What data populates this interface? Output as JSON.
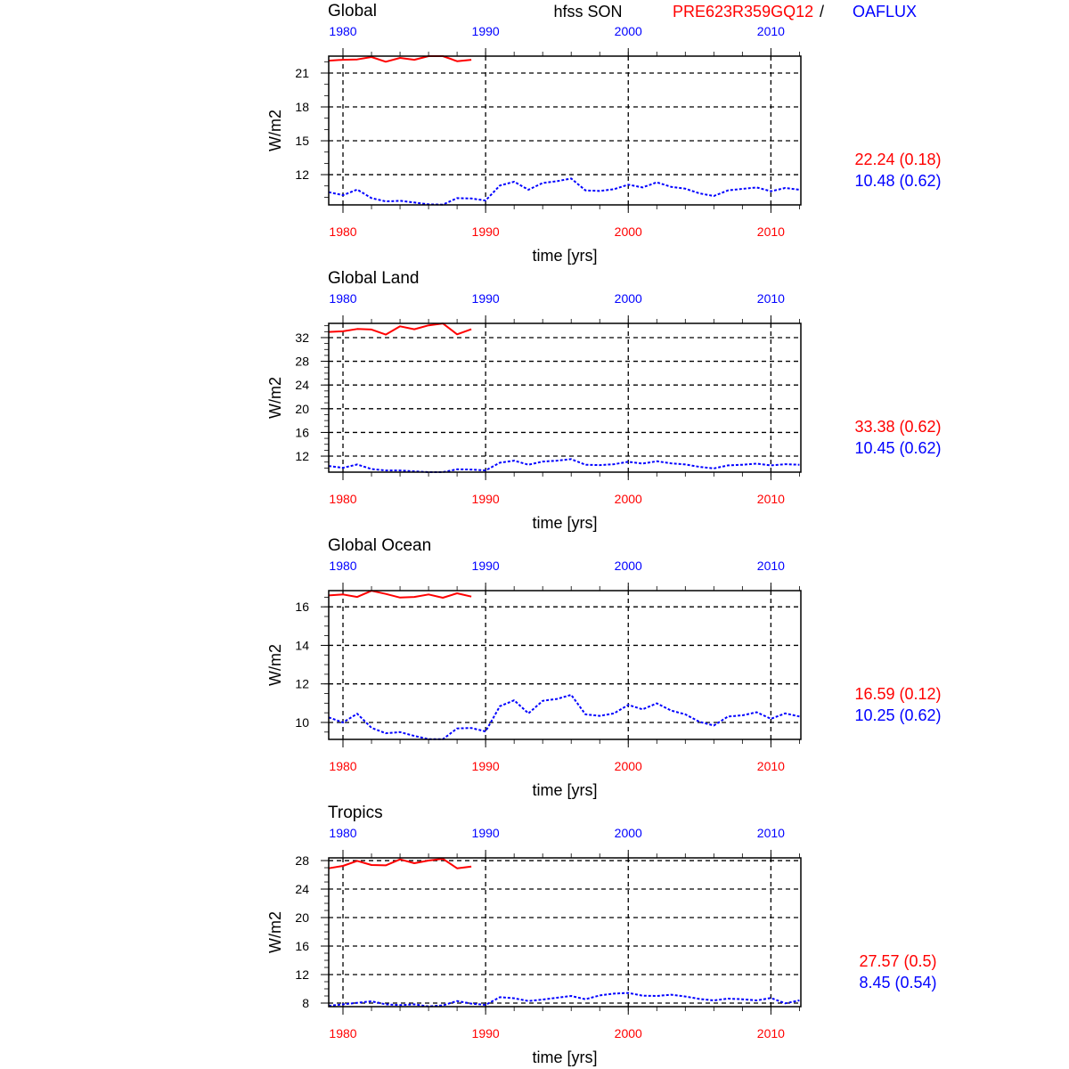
{
  "header": {
    "variable": "hfss SON",
    "model_name": "PRE623R359GQ12",
    "separator": "/",
    "obs_name": "OAFLUX"
  },
  "colors": {
    "model": "#ff0000",
    "obs": "#0000ff",
    "axis": "#000000"
  },
  "chart_data": [
    {
      "type": "line",
      "title": "Global",
      "xlabel": "time [yrs]",
      "ylabel": "W/m2",
      "xlim": [
        1979,
        2012.1
      ],
      "ylim": [
        9.32,
        22.5
      ],
      "xticks": [
        1980,
        1990,
        2000,
        2010
      ],
      "yticks": [
        12,
        15,
        18,
        21
      ],
      "yminor_step": 1,
      "grid": true,
      "stats": {
        "model": "22.24 (0.18)",
        "obs": "10.48 (0.62)"
      },
      "series": [
        {
          "name": "PRE623R359GQ12",
          "style": "solid",
          "x_start": 1979,
          "values": [
            22.1,
            22.18,
            22.21,
            22.42,
            22.0,
            22.34,
            22.18,
            22.5,
            22.5,
            22.05,
            22.18
          ]
        },
        {
          "name": "OAFLUX",
          "style": "dashed",
          "x_start": 1979,
          "values": [
            10.45,
            10.18,
            10.68,
            9.92,
            9.63,
            9.68,
            9.53,
            9.37,
            9.34,
            9.92,
            9.89,
            9.71,
            11.03,
            11.37,
            10.66,
            11.26,
            11.42,
            11.66,
            10.61,
            10.55,
            10.71,
            11.11,
            10.87,
            11.32,
            10.92,
            10.76,
            10.34,
            10.11,
            10.61,
            10.74,
            10.87,
            10.53,
            10.82,
            10.66
          ]
        }
      ]
    },
    {
      "type": "line",
      "title": "Global Land",
      "xlabel": "time [yrs]",
      "ylabel": "W/m2",
      "xlim": [
        1979,
        2012.1
      ],
      "ylim": [
        9.3,
        34.4
      ],
      "xticks": [
        1980,
        1990,
        2000,
        2010
      ],
      "yticks": [
        12,
        16,
        20,
        24,
        28,
        32
      ],
      "yminor_step": 1,
      "grid": true,
      "stats": {
        "model": "33.38 (0.62)",
        "obs": "10.45 (0.62)"
      },
      "series": [
        {
          "name": "PRE623R359GQ12",
          "style": "solid",
          "x_start": 1979,
          "values": [
            32.96,
            33.06,
            33.46,
            33.36,
            32.5,
            33.91,
            33.41,
            34.07,
            34.38,
            32.55,
            33.41
          ]
        },
        {
          "name": "OAFLUX",
          "style": "dashed",
          "x_start": 1979,
          "values": [
            10.34,
            10.04,
            10.59,
            9.83,
            9.58,
            9.58,
            9.43,
            9.3,
            9.3,
            9.78,
            9.73,
            9.58,
            10.89,
            11.24,
            10.54,
            11.09,
            11.24,
            11.5,
            10.54,
            10.49,
            10.64,
            11.04,
            10.74,
            11.14,
            10.79,
            10.59,
            10.19,
            9.93,
            10.44,
            10.54,
            10.74,
            10.44,
            10.64,
            10.54
          ]
        }
      ]
    },
    {
      "type": "line",
      "title": "Global Ocean",
      "xlabel": "time [yrs]",
      "ylabel": "W/m2",
      "xlim": [
        1979,
        2012.1
      ],
      "ylim": [
        9.12,
        16.84
      ],
      "xticks": [
        1980,
        1990,
        2000,
        2010
      ],
      "yticks": [
        10,
        12,
        14,
        16
      ],
      "yminor_step": 0.5,
      "grid": true,
      "stats": {
        "model": "16.59 (0.12)",
        "obs": "10.25 (0.62)"
      },
      "series": [
        {
          "name": "PRE623R359GQ12",
          "style": "solid",
          "x_start": 1979,
          "values": [
            16.59,
            16.64,
            16.51,
            16.83,
            16.67,
            16.48,
            16.51,
            16.64,
            16.47,
            16.7,
            16.53
          ]
        },
        {
          "name": "OAFLUX",
          "style": "dashed",
          "x_start": 1979,
          "values": [
            10.26,
            10.0,
            10.45,
            9.72,
            9.44,
            9.5,
            9.3,
            9.13,
            9.13,
            9.69,
            9.71,
            9.53,
            10.84,
            11.15,
            10.47,
            11.12,
            11.22,
            11.43,
            10.42,
            10.34,
            10.47,
            10.91,
            10.68,
            10.99,
            10.62,
            10.42,
            10.03,
            9.84,
            10.31,
            10.37,
            10.53,
            10.19,
            10.47,
            10.31
          ]
        }
      ]
    },
    {
      "type": "line",
      "title": "Tropics",
      "xlabel": "time [yrs]",
      "ylabel": "W/m2",
      "xlim": [
        1979,
        2012.1
      ],
      "ylim": [
        7.5,
        28.38
      ],
      "xticks": [
        1980,
        1990,
        2000,
        2010
      ],
      "yticks": [
        8,
        12,
        16,
        20,
        24,
        28
      ],
      "yminor_step": 1,
      "grid": true,
      "stats": {
        "model": "27.57 (0.5)",
        "obs": "8.45 (0.54)"
      },
      "series": [
        {
          "name": "PRE623R359GQ12",
          "style": "solid",
          "x_start": 1979,
          "values": [
            26.92,
            27.25,
            27.96,
            27.38,
            27.33,
            28.17,
            27.63,
            28.0,
            28.25,
            26.92,
            27.17
          ]
        },
        {
          "name": "OAFLUX",
          "style": "dashed",
          "x_start": 1979,
          "values": [
            7.63,
            7.83,
            8.04,
            8.25,
            7.83,
            7.71,
            7.83,
            7.52,
            7.67,
            8.29,
            7.92,
            7.75,
            8.83,
            8.67,
            8.29,
            8.5,
            8.75,
            9.0,
            8.54,
            9.08,
            9.33,
            9.42,
            9.04,
            9.0,
            9.17,
            8.92,
            8.58,
            8.38,
            8.63,
            8.54,
            8.38,
            8.71,
            7.96,
            8.38
          ]
        }
      ]
    }
  ]
}
